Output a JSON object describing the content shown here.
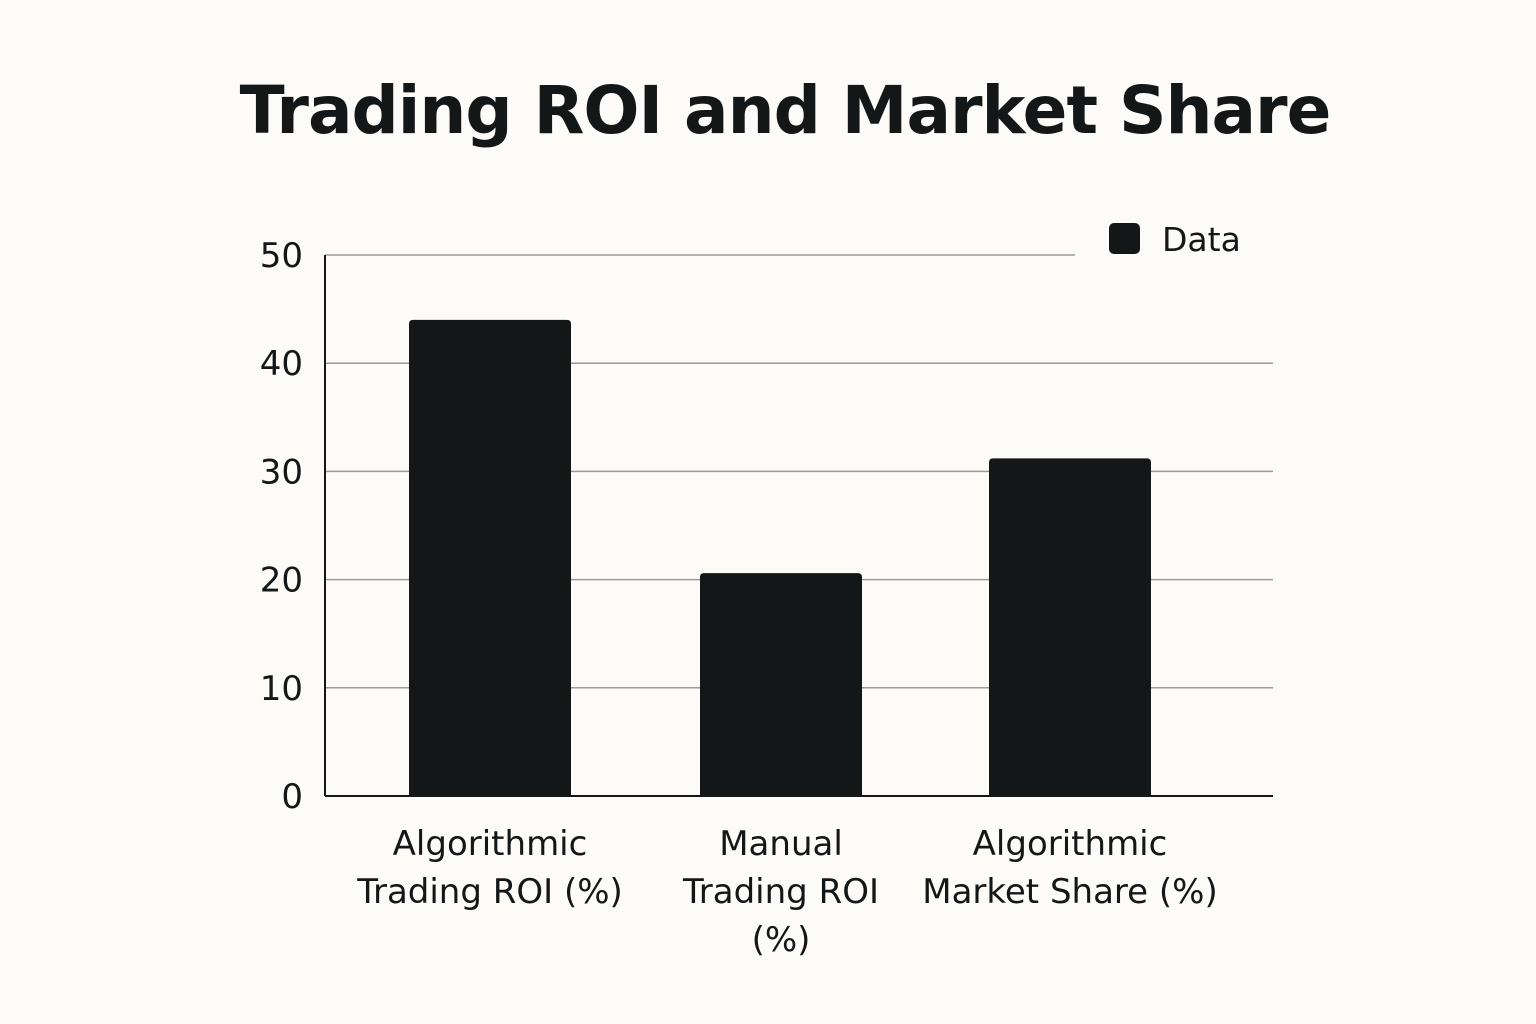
{
  "chart_data": {
    "type": "bar",
    "title": "Trading ROI and Market Share",
    "xlabel": "",
    "ylabel": "",
    "categories": [
      [
        "Algorithmic",
        "Trading ROI (%)"
      ],
      [
        "Manual",
        "Trading ROI",
        "(%)"
      ],
      [
        "Algorithmic",
        "Market Share (%)"
      ]
    ],
    "series": [
      {
        "name": "Data",
        "values": [
          44,
          20.6,
          31.2
        ]
      }
    ],
    "ylim": [
      0,
      50
    ],
    "yticks": [
      "0",
      "10",
      "20",
      "30",
      "40",
      "50"
    ],
    "grid": true,
    "legend": "top-right",
    "colors": {
      "bar": "#141718",
      "grid": "#9a9a9a",
      "axis": "#141718",
      "text": "#141718",
      "background": "#fcfbf7"
    }
  }
}
